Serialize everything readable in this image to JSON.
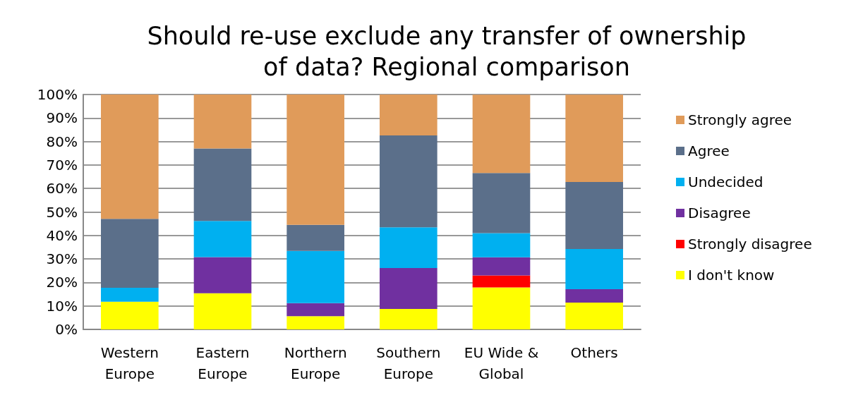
{
  "chart_data": {
    "type": "bar",
    "title": "Should re-use exclude any transfer of ownership\nof data? Regional comparison",
    "stacked": true,
    "categories": [
      "Western\nEurope",
      "Eastern\nEurope",
      "Northern\nEurope",
      "Southern\nEurope",
      "EU Wide &\nGlobal",
      "Others"
    ],
    "series": [
      {
        "name": "I don't know",
        "color": "#ffff00",
        "values": [
          11.8,
          15.4,
          5.6,
          8.7,
          17.9,
          11.4
        ]
      },
      {
        "name": "Strongly disagree",
        "color": "#ff0000",
        "values": [
          0,
          0,
          0,
          0,
          5.1,
          0
        ]
      },
      {
        "name": "Disagree",
        "color": "#7030a0",
        "values": [
          0,
          15.4,
          5.6,
          17.4,
          7.7,
          5.7
        ]
      },
      {
        "name": "Undecided",
        "color": "#00b0f0",
        "values": [
          5.9,
          15.4,
          22.2,
          17.4,
          10.3,
          17.1
        ]
      },
      {
        "name": "Agree",
        "color": "#5b6f8a",
        "values": [
          29.4,
          30.8,
          11.1,
          39.1,
          25.6,
          28.6
        ]
      },
      {
        "name": "Strongly agree",
        "color": "#e09b5a",
        "values": [
          52.9,
          23.1,
          55.6,
          17.4,
          33.3,
          37.1
        ]
      }
    ],
    "ylim": [
      0,
      100
    ],
    "yticks": [
      {
        "value": 0,
        "label": "0%"
      },
      {
        "value": 10,
        "label": "10%"
      },
      {
        "value": 20,
        "label": "20%"
      },
      {
        "value": 30,
        "label": "30%"
      },
      {
        "value": 40,
        "label": "40%"
      },
      {
        "value": 50,
        "label": "50%"
      },
      {
        "value": 60,
        "label": "60%"
      },
      {
        "value": 70,
        "label": "70%"
      },
      {
        "value": 80,
        "label": "80%"
      },
      {
        "value": 90,
        "label": "90%"
      },
      {
        "value": 100,
        "label": "100%"
      }
    ],
    "grid": "y",
    "legend": "right"
  }
}
